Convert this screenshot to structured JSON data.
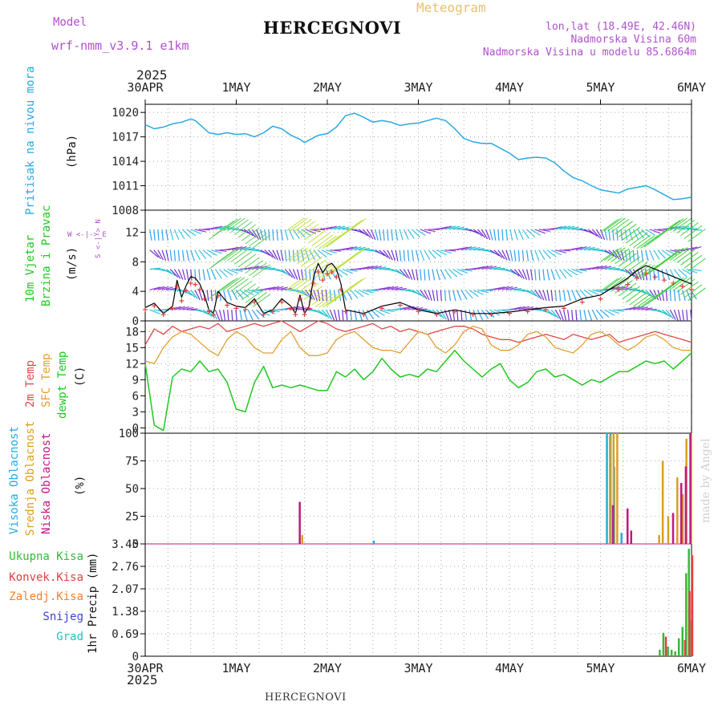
{
  "header": {
    "model_label": "Model",
    "model_name": "wrf-nmm_v3.9.1 e1km",
    "station": "HERCEGNOVI",
    "meteogram": "Meteogram",
    "lonlat": "lon,lat (18.49E, 42.46N)",
    "elevation": "Nadmorska Visina 60m",
    "model_elevation": "Nadmorska Visina u modelu 85.6864m",
    "credit": "made by Angel",
    "footer_station": "HERCEGNOVI"
  },
  "colors": {
    "pressure": "#29a9e0",
    "temp2m": "#e04848",
    "sfctemp": "#e0a030",
    "dewpt": "#20c820",
    "cloud_high": "#29a9e0",
    "cloud_mid": "#d8a020",
    "cloud_low": "#c01880",
    "rain_total": "#38b838",
    "rain_conv": "#e04040",
    "rain_frozen": "#f08030",
    "snow": "#4040e0",
    "hail": "#20c0c0",
    "header_purple": "#b050d0",
    "header_orange": "#e8c070"
  },
  "axes": {
    "top_year": "2025",
    "bottom_year": "2025",
    "date_labels": [
      "30APR",
      "1MAY",
      "2MAY",
      "3MAY",
      "4MAY",
      "5MAY",
      "6MAY"
    ],
    "day_range": [
      0,
      6
    ]
  },
  "chart_data": [
    {
      "id": "pressure",
      "type": "line",
      "ylabel": "Pritisak na nivou mora",
      "unit": "(hPa)",
      "ylim": [
        1008,
        1021
      ],
      "yticks": [
        "1008",
        "1011",
        "1014",
        "1017",
        "1020"
      ],
      "x": [
        0,
        0.1,
        0.2,
        0.3,
        0.4,
        0.5,
        0.55,
        0.6,
        0.7,
        0.8,
        0.9,
        1.0,
        1.1,
        1.2,
        1.3,
        1.4,
        1.5,
        1.6,
        1.7,
        1.75,
        1.8,
        1.9,
        2.0,
        2.1,
        2.2,
        2.3,
        2.4,
        2.5,
        2.6,
        2.7,
        2.8,
        2.9,
        3.0,
        3.1,
        3.2,
        3.3,
        3.4,
        3.5,
        3.6,
        3.7,
        3.8,
        3.9,
        4.0,
        4.1,
        4.2,
        4.3,
        4.4,
        4.5,
        4.6,
        4.7,
        4.8,
        4.9,
        5.0,
        5.1,
        5.2,
        5.3,
        5.4,
        5.5,
        5.6,
        5.7,
        5.8,
        5.9,
        6.0
      ],
      "y": [
        1018.5,
        1018,
        1018.2,
        1018.6,
        1018.8,
        1019.2,
        1019.0,
        1018.5,
        1017.5,
        1017.3,
        1017.5,
        1017.3,
        1017.4,
        1017.0,
        1017.5,
        1018.3,
        1018.0,
        1017.2,
        1016.7,
        1016.3,
        1016.6,
        1017.2,
        1017.4,
        1018.2,
        1019.6,
        1019.9,
        1019.4,
        1018.8,
        1019.0,
        1018.8,
        1018.4,
        1018.6,
        1018.7,
        1019.0,
        1019.3,
        1019.0,
        1018.0,
        1016.8,
        1016.4,
        1016.2,
        1016.2,
        1015.6,
        1015.0,
        1014.2,
        1014.4,
        1014.5,
        1014.4,
        1013.8,
        1012.8,
        1012.0,
        1011.6,
        1011.0,
        1010.5,
        1010.3,
        1010.1,
        1010.6,
        1010.8,
        1011.0,
        1010.5,
        1009.9,
        1009.3,
        1009.4,
        1009.6
      ],
      "series_labels": []
    },
    {
      "id": "wind",
      "type": "line",
      "ylabel": "10m Vjetar",
      "ylabel2": "Brzina i Pravac",
      "unit": "(m/s)",
      "compass": "W <-|-> E",
      "compass2": "S <-|-> N",
      "ylim": [
        0,
        15
      ],
      "yticks": [
        "0",
        "4",
        "8",
        "12"
      ],
      "x": [
        0,
        0.1,
        0.2,
        0.3,
        0.35,
        0.4,
        0.45,
        0.5,
        0.55,
        0.6,
        0.65,
        0.7,
        0.75,
        0.8,
        0.9,
        1.0,
        1.1,
        1.2,
        1.3,
        1.4,
        1.5,
        1.6,
        1.65,
        1.7,
        1.75,
        1.8,
        1.85,
        1.9,
        1.95,
        2.0,
        2.05,
        2.1,
        2.15,
        2.2,
        2.4,
        2.6,
        2.8,
        3.0,
        3.2,
        3.4,
        3.6,
        3.8,
        4.0,
        4.2,
        4.4,
        4.6,
        4.8,
        5.0,
        5.2,
        5.3,
        5.4,
        5.5,
        5.6,
        5.7,
        5.8,
        5.9,
        6.0
      ],
      "speed": [
        1.8,
        2.4,
        1.0,
        2.0,
        5.5,
        3.2,
        4.8,
        6.0,
        5.8,
        5.0,
        3.5,
        1.5,
        1.0,
        4.0,
        2.5,
        2.0,
        1.8,
        3.0,
        1.0,
        1.5,
        3.0,
        2.0,
        1.0,
        3.5,
        1.0,
        2.0,
        6.0,
        7.8,
        6.5,
        7.5,
        7.8,
        7.0,
        5.0,
        1.5,
        1.0,
        2.0,
        2.5,
        1.5,
        1.0,
        1.5,
        1.0,
        1.0,
        1.2,
        1.5,
        1.8,
        2.0,
        3.0,
        3.5,
        5.0,
        5.8,
        6.8,
        7.5,
        7.0,
        6.5,
        6.0,
        5.5,
        5.0
      ],
      "series_labels": []
    },
    {
      "id": "temperature",
      "type": "line",
      "ylabel_t2m": "2m Temp",
      "ylabel_sfc": "SFC Temp",
      "ylabel_dew": "dewpt Temp",
      "unit": "(C)",
      "ylim": [
        -1,
        20
      ],
      "yticks": [
        "0",
        "3",
        "6",
        "9",
        "12",
        "15",
        "18"
      ],
      "x": [
        0,
        0.1,
        0.2,
        0.3,
        0.4,
        0.5,
        0.6,
        0.7,
        0.8,
        0.9,
        1.0,
        1.1,
        1.2,
        1.3,
        1.4,
        1.5,
        1.6,
        1.7,
        1.8,
        1.9,
        2.0,
        2.1,
        2.2,
        2.3,
        2.4,
        2.5,
        2.6,
        2.7,
        2.8,
        2.9,
        3.0,
        3.1,
        3.2,
        3.3,
        3.4,
        3.5,
        3.6,
        3.7,
        3.8,
        3.9,
        4.0,
        4.1,
        4.2,
        4.3,
        4.4,
        4.5,
        4.6,
        4.7,
        4.8,
        4.9,
        5.0,
        5.1,
        5.2,
        5.3,
        5.4,
        5.5,
        5.6,
        5.7,
        5.8,
        5.9,
        6.0
      ],
      "t2m": [
        15.5,
        18.5,
        17.5,
        19.0,
        18.0,
        18.5,
        19.0,
        18.5,
        19.5,
        18.0,
        18.5,
        19.0,
        19.5,
        19.0,
        19.5,
        20.0,
        19.0,
        18.0,
        19.0,
        20.0,
        19.5,
        18.5,
        18.0,
        18.5,
        19.0,
        19.5,
        18.5,
        19.0,
        18.0,
        18.5,
        18.0,
        17.5,
        18.0,
        18.5,
        19.0,
        19.0,
        18.5,
        17.5,
        17.0,
        16.5,
        16.5,
        16.0,
        16.5,
        17.0,
        17.5,
        17.0,
        16.5,
        17.5,
        17.0,
        16.5,
        17.0,
        17.5,
        16.0,
        16.5,
        17.0,
        17.5,
        18.0,
        17.5,
        17.0,
        16.5,
        16.0
      ],
      "sfc": [
        12.5,
        12.0,
        15.0,
        17.0,
        18.0,
        17.5,
        16.0,
        14.5,
        13.5,
        16.5,
        18.0,
        17.0,
        15.0,
        14.0,
        14.0,
        16.5,
        18.0,
        15.0,
        13.5,
        13.5,
        14.0,
        16.5,
        17.5,
        18.0,
        16.5,
        15.0,
        14.5,
        14.5,
        14.0,
        16.0,
        18.0,
        17.5,
        15.0,
        14.0,
        15.5,
        18.0,
        19.0,
        18.5,
        15.5,
        14.5,
        14.5,
        15.5,
        17.5,
        18.0,
        17.0,
        15.0,
        14.5,
        14.0,
        15.5,
        17.5,
        18.0,
        17.0,
        15.5,
        14.5,
        15.5,
        17.0,
        17.5,
        16.5,
        15.0,
        14.5,
        14.5
      ],
      "dew": [
        12.0,
        0.5,
        -0.5,
        9.5,
        11.0,
        10.5,
        12.5,
        10.5,
        11.0,
        8.5,
        3.5,
        3.0,
        8.5,
        11.5,
        7.5,
        8.0,
        7.5,
        8.0,
        7.5,
        7.0,
        7.0,
        10.5,
        9.5,
        11.0,
        9.0,
        10.5,
        13.0,
        11.0,
        9.5,
        10.0,
        9.5,
        11.0,
        10.5,
        12.5,
        14.5,
        12.5,
        11.0,
        9.5,
        11.0,
        12.0,
        9.0,
        7.5,
        8.5,
        10.5,
        11.0,
        9.5,
        10.0,
        9.0,
        8.0,
        9.0,
        8.5,
        9.5,
        10.5,
        10.5,
        11.5,
        12.5,
        12.0,
        12.5,
        11.0,
        12.5,
        14.0
      ],
      "series_labels": []
    },
    {
      "id": "clouds",
      "type": "bar",
      "ylabel_high": "Visoka Oblacnost",
      "ylabel_mid": "Srednja Oblacnost",
      "ylabel_low": "Niska Oblacnost",
      "unit": "(%)",
      "ylim": [
        0,
        100
      ],
      "yticks": [
        "0",
        "25",
        "50",
        "75",
        "100"
      ],
      "high": [
        [
          2.5,
          3
        ],
        [
          5.06,
          100
        ],
        [
          5.1,
          100
        ],
        [
          5.14,
          70
        ],
        [
          5.22,
          10
        ]
      ],
      "mid": [
        [
          1.7,
          8
        ],
        [
          5.08,
          98
        ],
        [
          5.12,
          100
        ],
        [
          5.16,
          100
        ],
        [
          5.62,
          8
        ],
        [
          5.66,
          75
        ],
        [
          5.72,
          25
        ],
        [
          5.82,
          60
        ],
        [
          5.88,
          45
        ],
        [
          5.92,
          95
        ],
        [
          5.97,
          100
        ]
      ],
      "low": [
        [
          1.66,
          38
        ],
        [
          5.1,
          35
        ],
        [
          5.26,
          32
        ],
        [
          5.3,
          12
        ],
        [
          5.76,
          28
        ],
        [
          5.85,
          55
        ],
        [
          5.9,
          70
        ],
        [
          5.95,
          100
        ]
      ],
      "series_labels": []
    },
    {
      "id": "precip",
      "type": "bar",
      "ylabel_total": "Ukupna Kisa",
      "ylabel_conv": "Konvek.Kisa",
      "ylabel_frozen": "Zaledj.Kisa",
      "ylabel_snow": "Snijeg",
      "ylabel_hail": "Grad",
      "unit": "1hr Precip (mm)",
      "ylim": [
        0,
        3.45
      ],
      "yticks": [
        "0",
        "0.69",
        "1.38",
        "2.07",
        "2.76",
        "3.45"
      ],
      "total": [
        [
          5.64,
          0.2
        ],
        [
          5.68,
          0.72
        ],
        [
          5.73,
          0.3
        ],
        [
          5.77,
          0.2
        ],
        [
          5.81,
          0.15
        ],
        [
          5.85,
          0.55
        ],
        [
          5.89,
          0.9
        ],
        [
          5.93,
          2.55
        ],
        [
          5.96,
          3.3
        ],
        [
          5.99,
          1.1
        ]
      ],
      "conv": [
        [
          5.69,
          0.6
        ],
        [
          5.9,
          0.5
        ],
        [
          5.95,
          2.0
        ],
        [
          5.98,
          3.1
        ]
      ],
      "series_labels": []
    }
  ]
}
